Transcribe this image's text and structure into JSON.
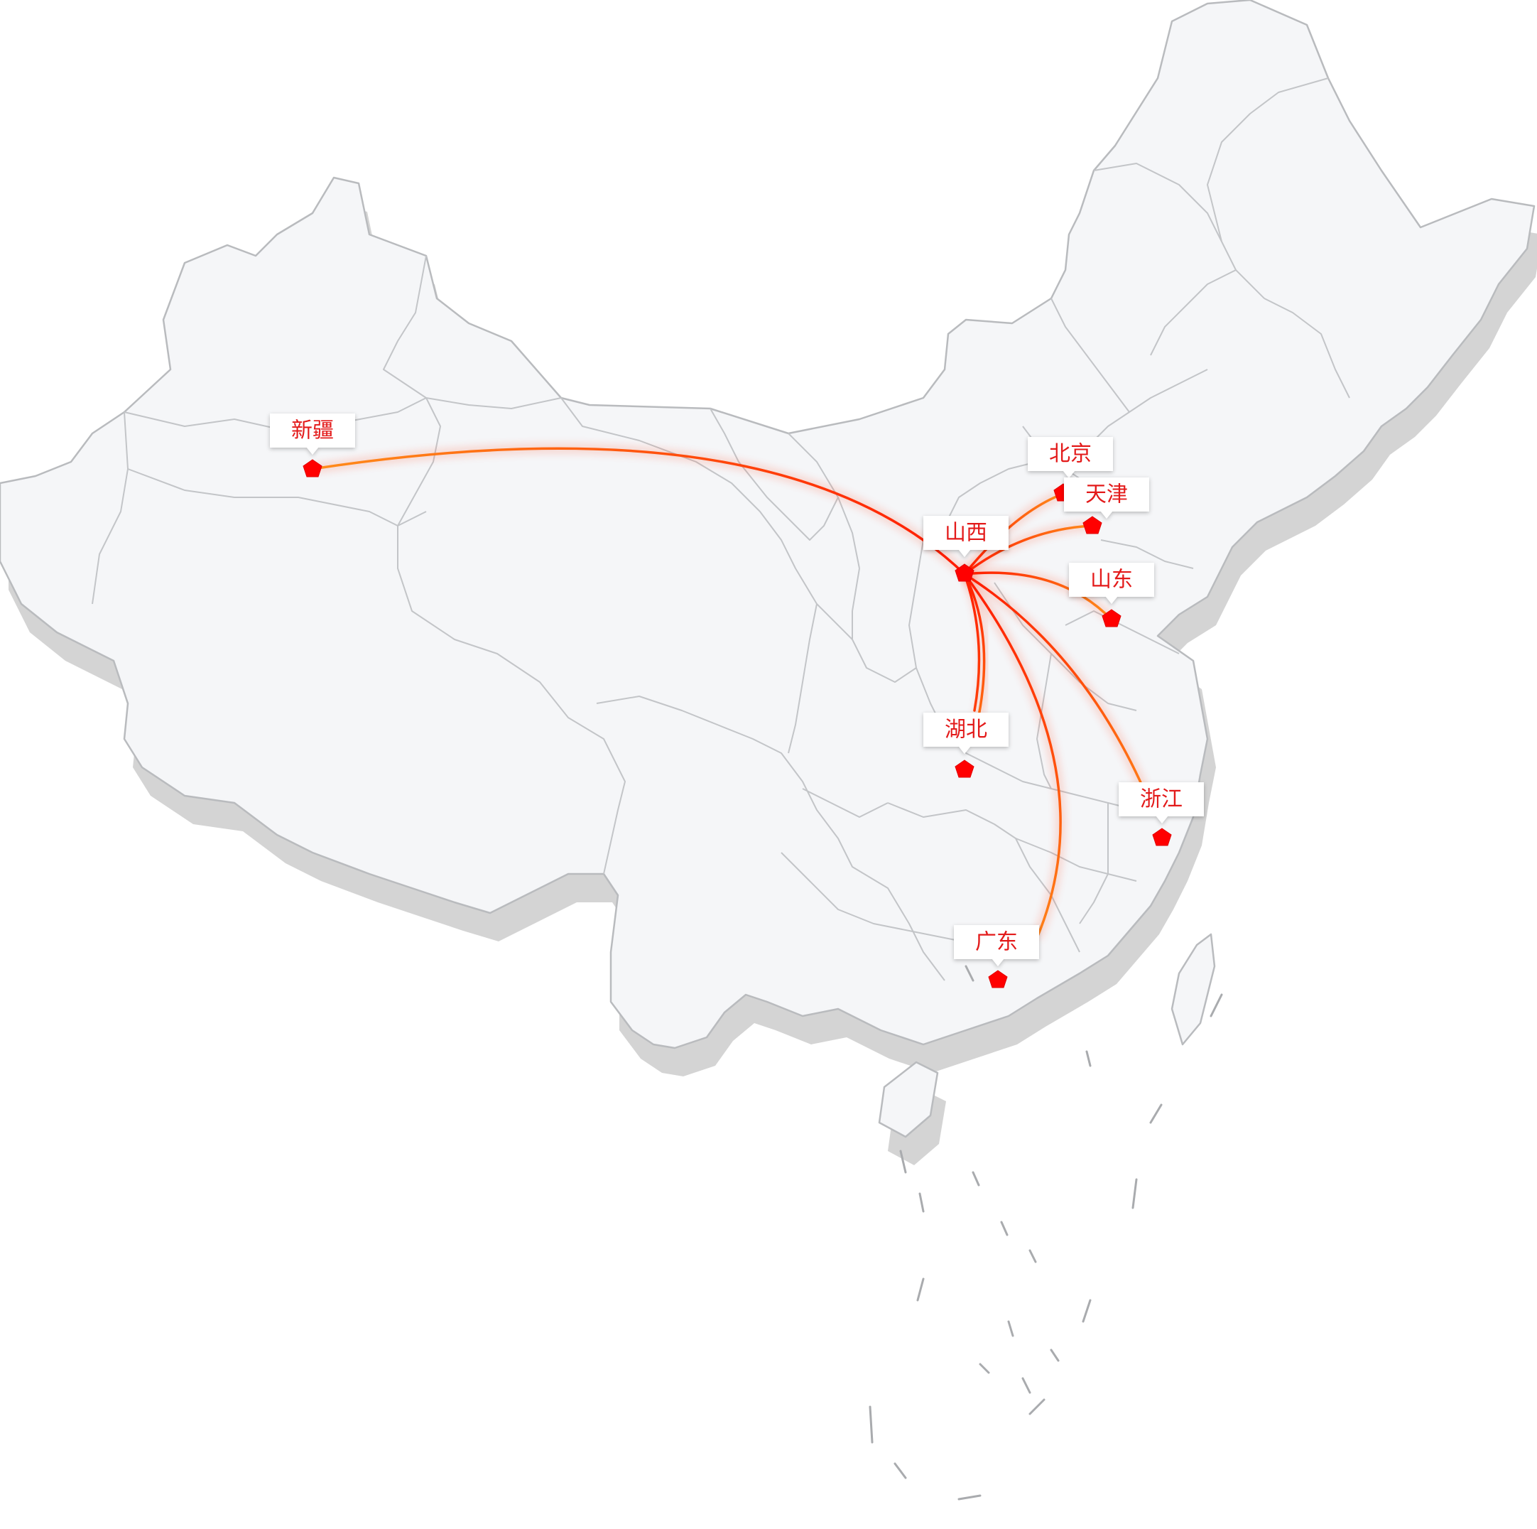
{
  "colors": {
    "land": "#f5f6f8",
    "land_border": "#b9bbbe",
    "shadow": "#d4d4d4",
    "marker": "#ff0000",
    "label_text": "#e31a1a",
    "route_start": "#ff1a00",
    "route_end": "#ff8c1a"
  },
  "map": {
    "region": "China",
    "marker_shape": "pentagon",
    "origin": "山西",
    "places": [
      {
        "id": "shanxi",
        "name": "山西"
      },
      {
        "id": "xinjiang",
        "name": "新疆"
      },
      {
        "id": "beijing",
        "name": "北京"
      },
      {
        "id": "tianjin",
        "name": "天津"
      },
      {
        "id": "shandong",
        "name": "山东"
      },
      {
        "id": "hubei",
        "name": "湖北"
      },
      {
        "id": "zhejiang",
        "name": "浙江"
      },
      {
        "id": "guangdong",
        "name": "广东"
      }
    ],
    "routes": [
      {
        "from": "山西",
        "to": "新疆"
      },
      {
        "from": "山西",
        "to": "北京"
      },
      {
        "from": "山西",
        "to": "天津"
      },
      {
        "from": "山西",
        "to": "山东"
      },
      {
        "from": "山西",
        "to": "湖北"
      },
      {
        "from": "山西",
        "to": "浙江"
      },
      {
        "from": "山西",
        "to": "广东"
      }
    ]
  }
}
